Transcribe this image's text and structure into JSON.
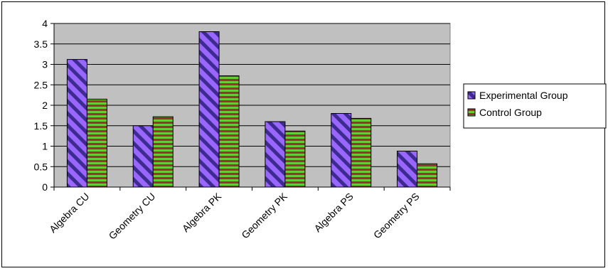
{
  "chart_data": {
    "type": "bar",
    "categories": [
      "Algebra CU",
      "Geometry CU",
      "Algebra PK",
      "Geometry PK",
      "Algebra PS",
      "Geometry PS"
    ],
    "series": [
      {
        "name": "Experimental Group",
        "values": [
          3.12,
          1.5,
          3.8,
          1.6,
          1.8,
          0.88
        ],
        "color": "#9966ff",
        "pattern": "diagonal-stripes"
      },
      {
        "name": "Control Group",
        "values": [
          2.15,
          1.72,
          2.72,
          1.37,
          1.68,
          0.57
        ],
        "color": "#339966",
        "pattern": "horizontal-stripes"
      }
    ],
    "yticks": [
      "0",
      "0.5",
      "1",
      "1.5",
      "2",
      "2.5",
      "3",
      "3.5",
      "4"
    ],
    "ylim": [
      0,
      4
    ],
    "plot_background": "#c0c0c0",
    "grid": true,
    "legend_position": "right"
  }
}
